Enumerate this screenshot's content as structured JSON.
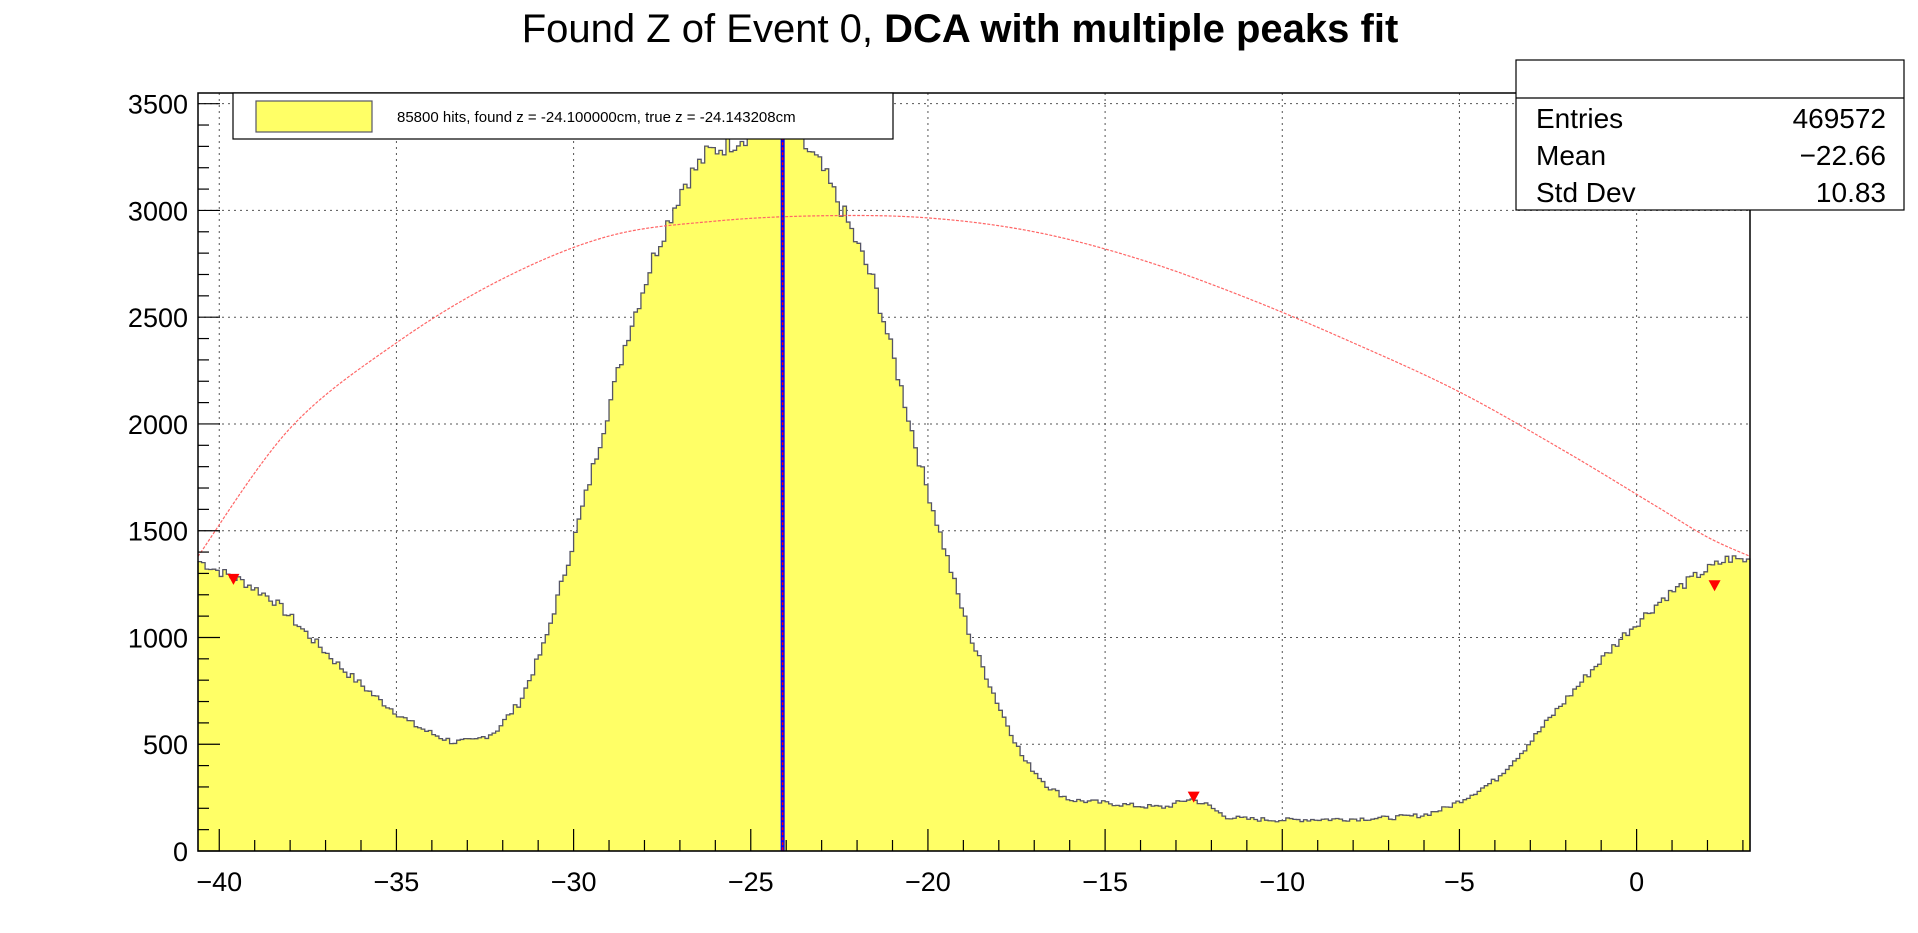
{
  "chart_data": {
    "type": "histogram",
    "title": {
      "regular": "Found Z of Event 0, ",
      "bold": "DCA with multiple peaks fit"
    },
    "xlabel": "",
    "ylabel": "",
    "xlim": [
      -40.6,
      3.2
    ],
    "ylim": [
      0,
      3550
    ],
    "x_ticks": [
      -40,
      -35,
      -30,
      -25,
      -20,
      -15,
      -10,
      -5,
      0
    ],
    "x_tick_labels": [
      "−40",
      "−35",
      "−30",
      "−25",
      "−20",
      "−15",
      "−10",
      "−5",
      "0"
    ],
    "y_ticks": [
      0,
      500,
      1000,
      1500,
      2000,
      2500,
      3000,
      3500
    ],
    "y_tick_labels": [
      "0",
      "500",
      "1000",
      "1500",
      "2000",
      "2500",
      "3000",
      "3500"
    ],
    "grid": true,
    "histogram": {
      "name": "85800 hits, found z = -24.100000cm, true z = -24.143208cm",
      "fill_color": "#ffff66",
      "line_color": "#555566",
      "profile": [
        [
          -40.6,
          1360
        ],
        [
          -40.0,
          1310
        ],
        [
          -39.3,
          1260
        ],
        [
          -38.5,
          1180
        ],
        [
          -37.6,
          1030
        ],
        [
          -36.5,
          850
        ],
        [
          -35.5,
          710
        ],
        [
          -34.6,
          600
        ],
        [
          -34.0,
          550
        ],
        [
          -33.4,
          510
        ],
        [
          -32.8,
          515
        ],
        [
          -32.2,
          560
        ],
        [
          -31.5,
          700
        ],
        [
          -30.8,
          980
        ],
        [
          -30.0,
          1450
        ],
        [
          -29.2,
          1950
        ],
        [
          -28.5,
          2400
        ],
        [
          -27.7,
          2800
        ],
        [
          -26.9,
          3120
        ],
        [
          -26.2,
          3270
        ],
        [
          -25.5,
          3320
        ],
        [
          -24.6,
          3400
        ],
        [
          -24.1,
          3430
        ],
        [
          -23.6,
          3330
        ],
        [
          -23.0,
          3200
        ],
        [
          -22.3,
          2960
        ],
        [
          -21.5,
          2650
        ],
        [
          -20.8,
          2200
        ],
        [
          -20.2,
          1800
        ],
        [
          -19.5,
          1400
        ],
        [
          -18.8,
          1000
        ],
        [
          -18.0,
          680
        ],
        [
          -17.3,
          430
        ],
        [
          -16.6,
          300
        ],
        [
          -16.0,
          240
        ],
        [
          -15.0,
          225
        ],
        [
          -14.0,
          210
        ],
        [
          -13.3,
          205
        ],
        [
          -12.6,
          245
        ],
        [
          -12.1,
          215
        ],
        [
          -11.6,
          160
        ],
        [
          -11.0,
          150
        ],
        [
          -10.0,
          145
        ],
        [
          -9.0,
          148
        ],
        [
          -8.0,
          150
        ],
        [
          -7.0,
          155
        ],
        [
          -6.0,
          168
        ],
        [
          -5.4,
          200
        ],
        [
          -4.8,
          250
        ],
        [
          -4.0,
          330
        ],
        [
          -3.2,
          470
        ],
        [
          -2.3,
          650
        ],
        [
          -1.3,
          840
        ],
        [
          -0.3,
          1020
        ],
        [
          0.8,
          1190
        ],
        [
          1.8,
          1300
        ],
        [
          2.6,
          1370
        ],
        [
          3.2,
          1360
        ]
      ]
    },
    "fit_curve": {
      "color": "#ff6666",
      "points": [
        [
          -40.6,
          1380
        ],
        [
          -38.0,
          1980
        ],
        [
          -35.0,
          2380
        ],
        [
          -32.0,
          2680
        ],
        [
          -29.0,
          2880
        ],
        [
          -26.0,
          2950
        ],
        [
          -23.0,
          2975
        ],
        [
          -20.0,
          2965
        ],
        [
          -17.0,
          2900
        ],
        [
          -14.0,
          2770
        ],
        [
          -11.0,
          2590
        ],
        [
          -8.0,
          2380
        ],
        [
          -5.0,
          2150
        ],
        [
          -2.0,
          1870
        ],
        [
          0.5,
          1620
        ],
        [
          2.0,
          1470
        ],
        [
          3.2,
          1380
        ]
      ]
    },
    "peak_markers": {
      "color": "#ff0000",
      "points": [
        [
          -39.6,
          1270
        ],
        [
          -12.5,
          250
        ],
        [
          2.2,
          1240
        ]
      ]
    },
    "found_z": {
      "value": -24.1,
      "color": "#0000ff"
    },
    "true_z": {
      "value": -24.143208,
      "color": "#ff0000"
    },
    "legend": {
      "placement": "top-left",
      "label": "85800 hits, found z = -24.100000cm, true z = -24.143208cm"
    },
    "stats_box": {
      "placement": "top-right",
      "rows": [
        {
          "label": "Entries",
          "value": "469572"
        },
        {
          "label": "Mean",
          "value": "−22.66"
        },
        {
          "label": "Std Dev",
          "value": "10.83"
        }
      ]
    }
  }
}
